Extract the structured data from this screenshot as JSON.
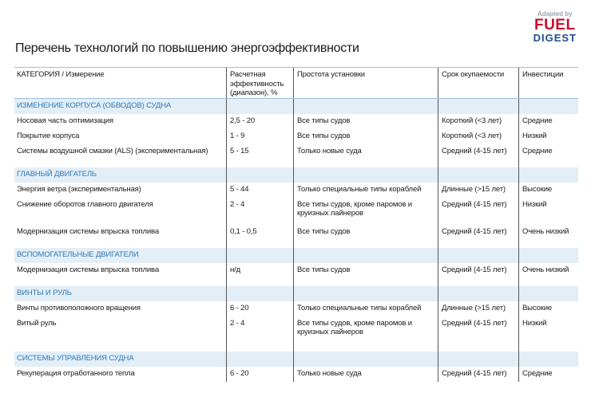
{
  "logo": {
    "adapted": "Adapted by",
    "brand": "FUEL",
    "sub": "DIGEST"
  },
  "title": "Перечень технологий по повышению энергоэффективности",
  "table": {
    "header": [
      "КАТЕГОРИЯ / Измерение",
      "Расчетная эффективность (диапазон), %",
      "Простота установки",
      "Срок окупаемости",
      "Инвестиции"
    ],
    "sections": [
      {
        "title": "ИЗМЕНЕНИЕ КОРПУСА (ОБВОДОВ) СУДНА",
        "rows": [
          [
            "Носовая часть оптимизация",
            "2,5 - 20",
            "Все типы судов",
            "Короткий (<3 лет)",
            "Средние"
          ],
          [
            "Покрытие корпуса",
            "1 - 9",
            "Все типы судов",
            "Короткий (<3 лет)",
            "Низкий"
          ],
          [
            "Системы воздушной смазки (ALS) (экспериментальная)",
            "5 - 15",
            "Только новые суда",
            "Средний (4-15 лет)",
            "Средние"
          ]
        ]
      },
      {
        "title": "ГЛАВНЫЙ ДВИГАТЕЛЬ",
        "rows": [
          [
            "Энергия ветра (экспериментальная)",
            "5 - 44",
            "Только специальные типы кораблей",
            "Длинные (>15 лет)",
            "Высокие"
          ],
          [
            "Снижение оборотов главного двигателя",
            "2 - 4",
            "Все типы судов,  кроме паромов и круизных лайнеров",
            "Средний (4-15 лет)",
            "Низкий"
          ],
          [
            "Модернизация системы впрыска топлива",
            "0,1 - 0,5",
            "Все типы судов",
            "Средний (4-15 лет)",
            "Очень низкий"
          ]
        ]
      },
      {
        "title": "ВСПОМОГАТЕЛЬНЫЕ ДВИГАТЕЛИ",
        "rows": [
          [
            "Модернизация системы впрыска топлива",
            "н/д",
            "Все типы судов",
            "Средний (4-15 лет)",
            "Очень низкий"
          ]
        ]
      },
      {
        "title": "ВИНТЫ И РУЛЬ",
        "rows": [
          [
            "Винты противоположного вращения",
            "6 - 20",
            "Только специальные типы кораблей",
            "Длинные (>15 лет)",
            "Высокие"
          ],
          [
            "Витый руль",
            "2 - 4",
            "Все типы судов,  кроме паромов и круизных лайнеров",
            "Средний (4-15 лет)",
            "Низкий"
          ]
        ]
      },
      {
        "title": "СИСТЕМЫ УПРАВЛЕНИЯ СУДНА",
        "rows": [
          [
            "Рекуперация  отработанного тепла",
            "6 - 20",
            "Только новые суда",
            "Средний (4-15 лет)",
            "Средние"
          ]
        ]
      }
    ]
  }
}
